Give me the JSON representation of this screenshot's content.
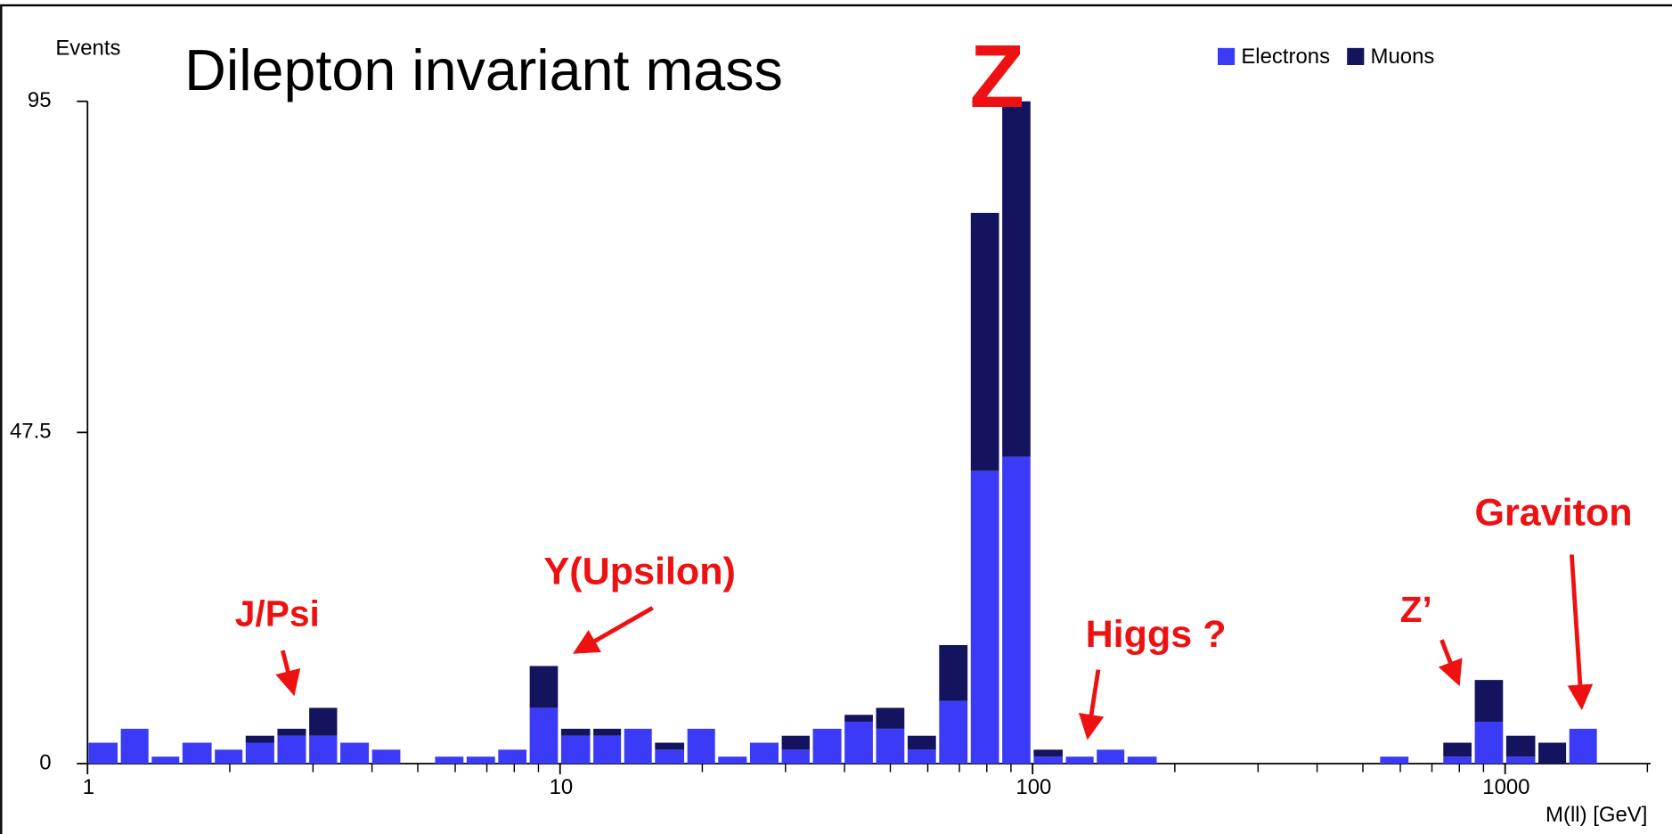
{
  "chart_data": {
    "type": "histogram",
    "title": "Dilepton invariant mass",
    "y_label": "Events",
    "x_label": "M(ll) [GeV]",
    "log_x": true,
    "xlim": [
      1,
      2000
    ],
    "xticks": [
      1,
      10,
      100,
      1000
    ],
    "xminorticks": [
      2,
      3,
      4,
      5,
      6,
      7,
      8,
      9,
      20,
      30,
      40,
      50,
      60,
      70,
      80,
      90,
      200,
      300,
      400,
      500,
      600,
      700,
      800,
      900,
      2000
    ],
    "ylim": [
      0,
      95
    ],
    "yticks": [
      0,
      47.5,
      95
    ],
    "stacked": true,
    "bins": [
      1,
      1.17,
      1.36,
      1.58,
      1.85,
      2.15,
      2.51,
      2.93,
      3.41,
      3.98,
      4.64,
      5.41,
      6.31,
      7.36,
      8.58,
      10,
      11.7,
      13.6,
      15.8,
      18.5,
      21.5,
      25.1,
      29.3,
      34.1,
      39.8,
      46.4,
      54.1,
      63.1,
      73.6,
      85.8,
      100,
      117,
      136,
      158,
      185,
      215,
      251,
      293,
      341,
      398,
      464,
      541,
      631,
      736,
      858,
      1000,
      1170,
      1360,
      1580
    ],
    "series": [
      {
        "name": "Electrons",
        "color": "#3b3bf7",
        "values": [
          3,
          5,
          1,
          3,
          2,
          3,
          4,
          4,
          3,
          2,
          0,
          1,
          1,
          2,
          8,
          4,
          4,
          5,
          2,
          5,
          1,
          3,
          2,
          5,
          6,
          5,
          2,
          9,
          42,
          44,
          1,
          1,
          2,
          1,
          0,
          0,
          0,
          0,
          0,
          0,
          0,
          1,
          0,
          1,
          6,
          1,
          0,
          5
        ]
      },
      {
        "name": "Muons",
        "color": "#14145e",
        "values": [
          0,
          0,
          0,
          0,
          0,
          1,
          1,
          4,
          0,
          0,
          0,
          0,
          0,
          0,
          6,
          1,
          1,
          0,
          1,
          0,
          0,
          0,
          2,
          0,
          1,
          3,
          2,
          8,
          37,
          51,
          1,
          0,
          0,
          0,
          0,
          0,
          0,
          0,
          0,
          0,
          0,
          0,
          0,
          2,
          6,
          3,
          3,
          0
        ]
      }
    ],
    "legend": "top-right",
    "annotations": [
      "Z",
      "J/Psi",
      "Υ(Upsilon)",
      "Higgs ?",
      "Z’",
      "Graviton"
    ]
  }
}
